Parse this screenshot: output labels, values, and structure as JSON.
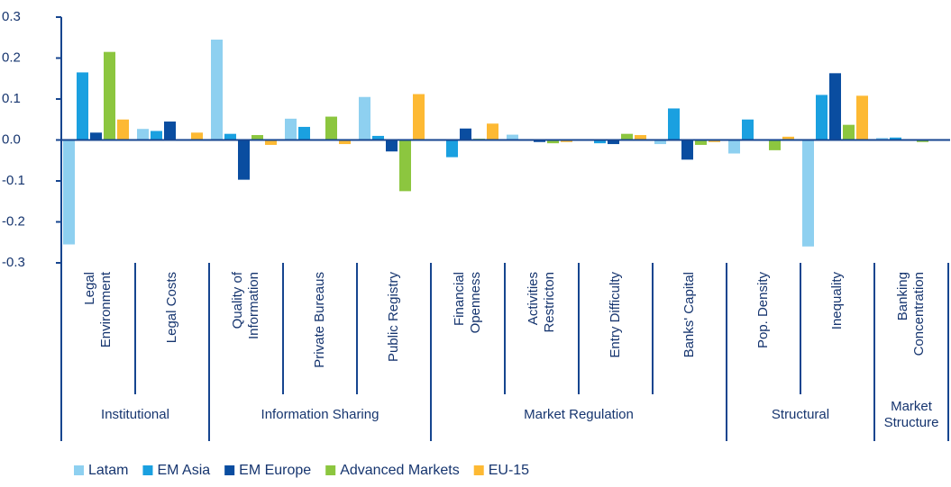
{
  "chart_data": {
    "type": "bar",
    "groups": [
      {
        "label": "Institutional",
        "categories": [
          "Legal\nEnvironment",
          "Legal Costs"
        ]
      },
      {
        "label": "Information Sharing",
        "categories": [
          "Quality of\nInformation",
          "Private Bureaus",
          "Public Registry"
        ]
      },
      {
        "label": "Market Regulation",
        "categories": [
          "Financial\nOpenness",
          "Activities\nRestricton",
          "Entry Difficulty",
          "Banks' Capital"
        ]
      },
      {
        "label": "Structural",
        "categories": [
          "Pop. Density",
          "Inequality"
        ]
      },
      {
        "label": "Market\nStructure",
        "categories": [
          "Banking\nConcentration"
        ]
      }
    ],
    "series": [
      {
        "name": "Latam",
        "color": "#8ed0f0",
        "values": [
          -0.255,
          0.027,
          0.245,
          0.052,
          0.105,
          0,
          0.013,
          0,
          -0.01,
          -0.033,
          -0.26,
          0.005
        ]
      },
      {
        "name": "EM Asia",
        "color": "#1aa0e0",
        "values": [
          0.165,
          0.022,
          0.015,
          0.032,
          0.01,
          -0.042,
          0,
          -0.008,
          0.077,
          0.05,
          0.11,
          0.006
        ]
      },
      {
        "name": "EM Europe",
        "color": "#0a4da0",
        "values": [
          0.018,
          0.045,
          -0.097,
          0,
          -0.028,
          0.028,
          -0.005,
          -0.01,
          -0.048,
          0,
          0.163,
          0
        ]
      },
      {
        "name": "Advanced Markets",
        "color": "#8cc63f",
        "values": [
          0.215,
          0,
          0.012,
          0.057,
          -0.125,
          0.003,
          -0.008,
          0.015,
          -0.012,
          -0.025,
          0.037,
          -0.005
        ]
      },
      {
        "name": "EU-15",
        "color": "#fdb933",
        "values": [
          0.05,
          0.018,
          -0.012,
          -0.01,
          0.112,
          0.04,
          -0.005,
          0.012,
          -0.005,
          0.008,
          0.108,
          0
        ]
      }
    ],
    "ylim": [
      -0.3,
      0.3
    ],
    "yticks": [
      -0.3,
      -0.2,
      -0.1,
      {
        "value": 0,
        "label": "0.0"
      },
      0.1,
      0.2,
      0.3
    ]
  }
}
